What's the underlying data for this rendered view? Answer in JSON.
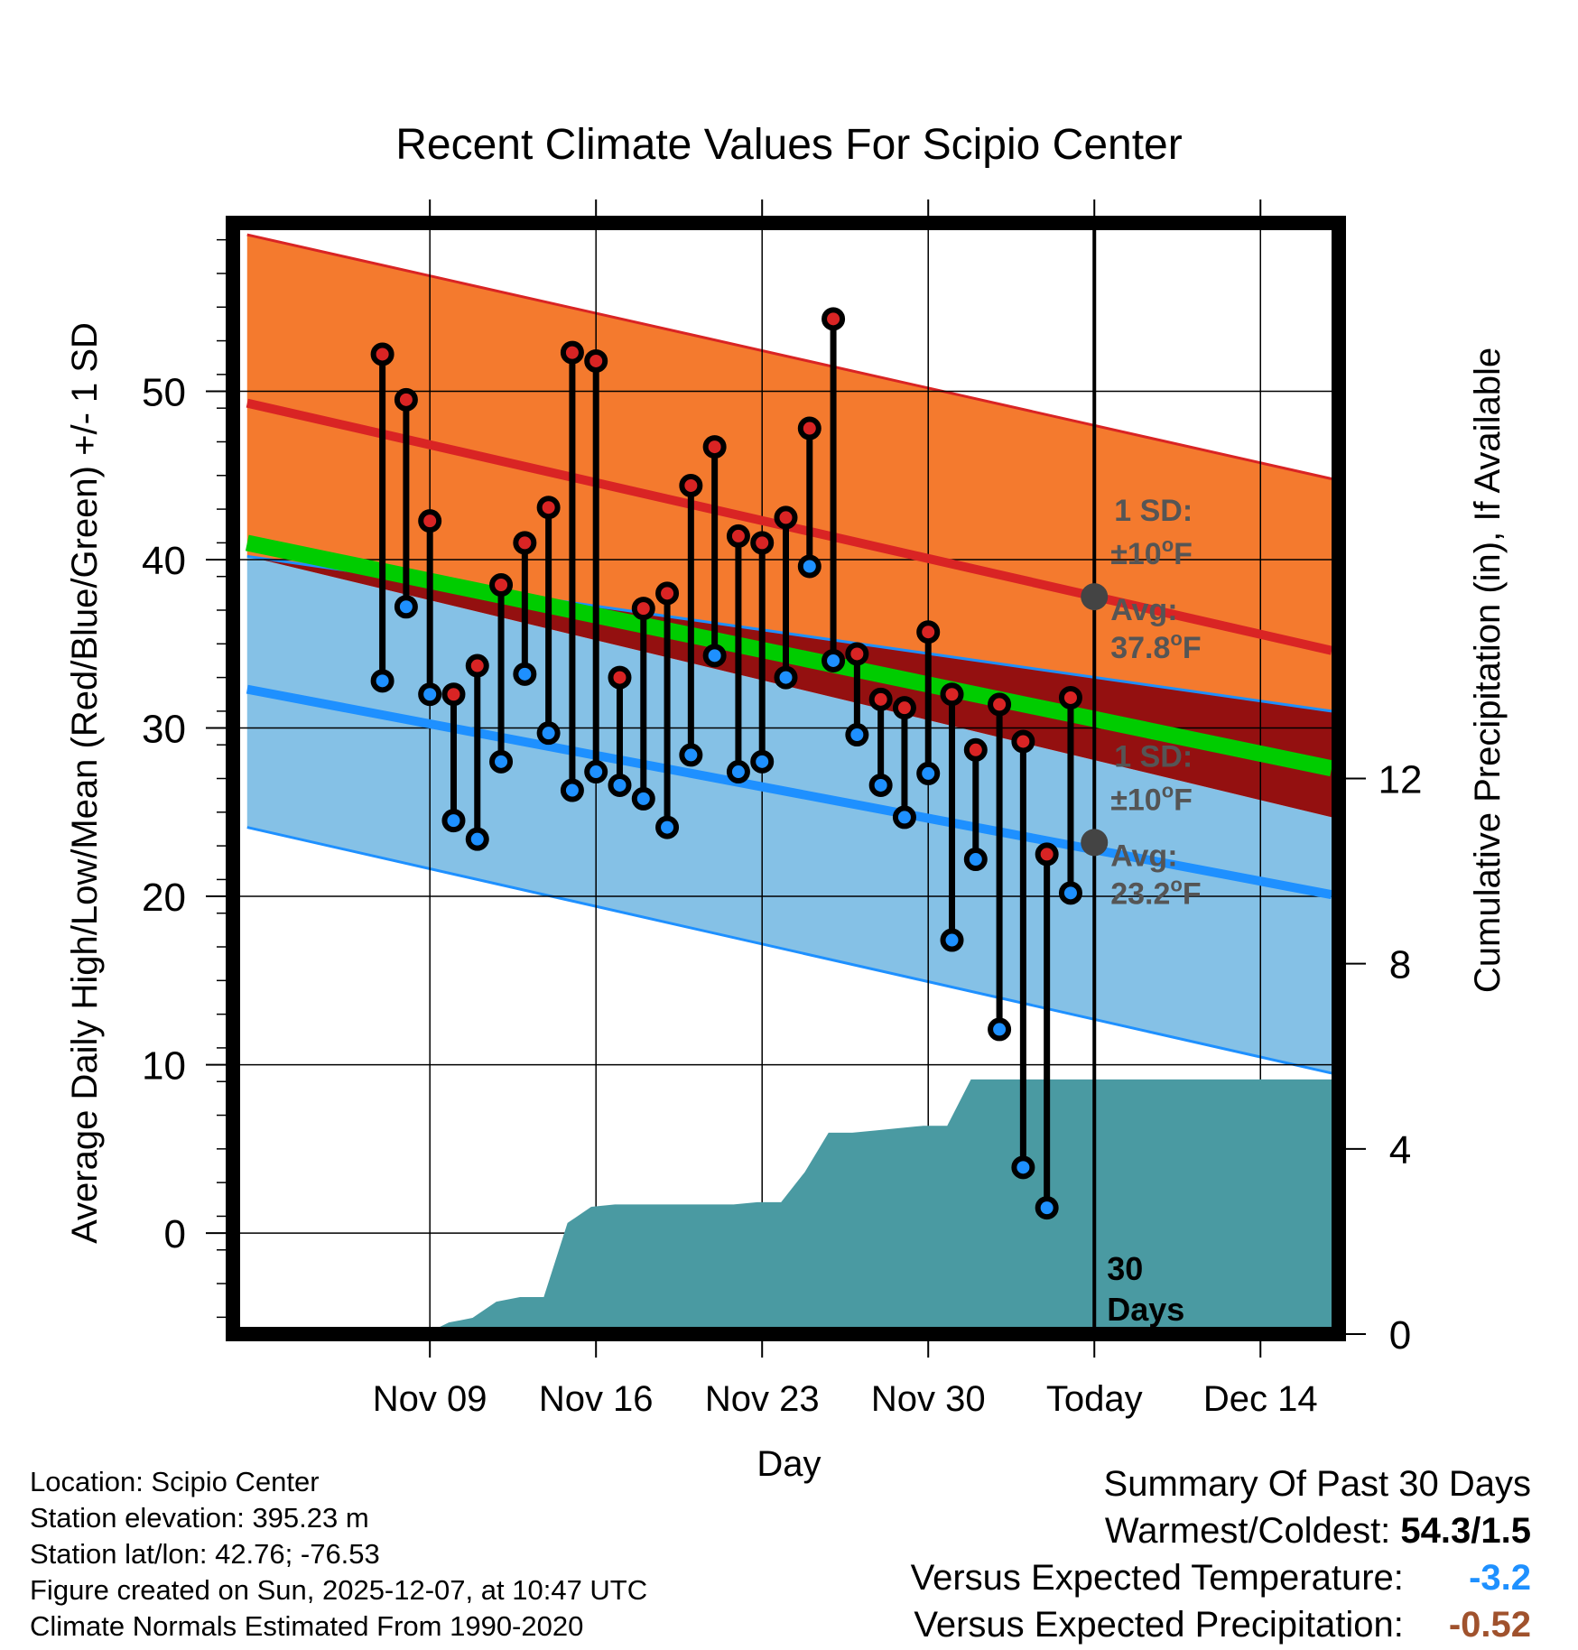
{
  "chart_data": {
    "type": "line",
    "title": "Recent Climate Values For Scipio Center",
    "xlabel": "Day",
    "ylabel": "Average Daily High/Low/Mean (Red/Blue/Green) +/- 1 SD",
    "y2label": "Cumulative Precipitation (in), If Available",
    "xlim_days": [
      -36.3,
      10.3
    ],
    "ylim": [
      -6,
      60
    ],
    "y2lim": [
      0,
      24
    ],
    "x_ticks": [
      {
        "day": -28,
        "label": "Nov 09"
      },
      {
        "day": -21,
        "label": "Nov 16"
      },
      {
        "day": -14,
        "label": "Nov 23"
      },
      {
        "day": -7,
        "label": "Nov 30"
      },
      {
        "day": 0,
        "label": "Today"
      },
      {
        "day": 7,
        "label": "Dec 14"
      }
    ],
    "y_ticks": [
      0,
      10,
      20,
      30,
      40,
      50
    ],
    "y2_ticks": [
      0,
      4,
      8,
      12
    ],
    "normals": {
      "x": [
        -35.7,
        10
      ],
      "high_avg": [
        49.3,
        34.6
      ],
      "high_sd_upper": [
        59.3,
        44.8
      ],
      "high_sd_lower": [
        40.2,
        31.0
      ],
      "low_avg": [
        32.3,
        20.1
      ],
      "low_sd_upper": [
        40.2,
        24.7
      ],
      "low_sd_lower": [
        24.1,
        9.5
      ],
      "mean_avg": [
        41.0,
        27.6
      ]
    },
    "today_high": {
      "value": 37.8,
      "sd_label": "1 SD:",
      "sd_value": "±10",
      "avg_label": "Avg:",
      "avg_value": "37.8",
      "unit": "F"
    },
    "today_low": {
      "value": 23.2,
      "sd_label": "1 SD:",
      "sd_value": "±10",
      "avg_label": "Avg:",
      "avg_value": "23.2",
      "unit": "F"
    },
    "window_label": [
      "30",
      "Days"
    ],
    "observations": [
      {
        "day": -30,
        "high": 52.2,
        "low": 32.8
      },
      {
        "day": -29,
        "high": 49.5,
        "low": 37.2
      },
      {
        "day": -28,
        "high": 42.3,
        "low": 32.0
      },
      {
        "day": -27,
        "high": 32.0,
        "low": 24.5
      },
      {
        "day": -26,
        "high": 33.7,
        "low": 23.4
      },
      {
        "day": -25,
        "high": 38.5,
        "low": 28.0
      },
      {
        "day": -24,
        "high": 41.0,
        "low": 33.2
      },
      {
        "day": -23,
        "high": 43.1,
        "low": 29.7
      },
      {
        "day": -22,
        "high": 52.3,
        "low": 26.3
      },
      {
        "day": -21,
        "high": 51.8,
        "low": 27.4
      },
      {
        "day": -20,
        "high": 33.0,
        "low": 26.6
      },
      {
        "day": -19,
        "high": 37.1,
        "low": 25.8
      },
      {
        "day": -18,
        "high": 38.0,
        "low": 24.1
      },
      {
        "day": -17,
        "high": 44.4,
        "low": 28.4
      },
      {
        "day": -16,
        "high": 46.7,
        "low": 34.3
      },
      {
        "day": -15,
        "high": 41.4,
        "low": 27.4
      },
      {
        "day": -14,
        "high": 41.0,
        "low": 28.0
      },
      {
        "day": -13,
        "high": 42.5,
        "low": 33.0
      },
      {
        "day": -12,
        "high": 47.8,
        "low": 39.6
      },
      {
        "day": -11,
        "high": 54.3,
        "low": 34.0
      },
      {
        "day": -10,
        "high": 34.4,
        "low": 29.6
      },
      {
        "day": -9,
        "high": 31.7,
        "low": 26.6
      },
      {
        "day": -8,
        "high": 31.2,
        "low": 24.7
      },
      {
        "day": -7,
        "high": 35.7,
        "low": 27.3
      },
      {
        "day": -6,
        "high": 32.0,
        "low": 17.4
      },
      {
        "day": -5,
        "high": 28.7,
        "low": 22.2
      },
      {
        "day": -4,
        "high": 31.4,
        "low": 12.1
      },
      {
        "day": -3,
        "high": 29.2,
        "low": 3.9
      },
      {
        "day": -2,
        "high": 22.5,
        "low": 1.5
      },
      {
        "day": -1,
        "high": 31.8,
        "low": 20.2
      }
    ],
    "precipitation_cumulative": {
      "x": [
        -35.7,
        -28.2,
        -27.2,
        -26.2,
        -25.2,
        -24.2,
        -23.2,
        -22.2,
        -21.2,
        -20.2,
        -19.2,
        -18.2,
        -17.2,
        -16.2,
        -15.2,
        -14.2,
        -13.2,
        -12.2,
        -11.2,
        -10.2,
        -9.2,
        -8.2,
        -7.2,
        -6.2,
        -5.2,
        -4.2,
        -3.2,
        -2.2,
        -1.2,
        0,
        10
      ],
      "y": [
        0,
        0,
        0.25,
        0.35,
        0.7,
        0.8,
        0.8,
        2.4,
        2.75,
        2.8,
        2.8,
        2.8,
        2.8,
        2.8,
        2.8,
        2.85,
        2.85,
        3.5,
        4.35,
        4.35,
        4.4,
        4.45,
        4.5,
        4.5,
        5.5,
        5.5,
        5.5,
        5.5,
        5.5,
        5.5,
        5.5
      ]
    },
    "colors": {
      "high_band": "#f47a2e",
      "high_line": "#d92424",
      "mean_line": "#00cc00",
      "overlap_band": "#941010",
      "low_band": "#85c1e6",
      "low_line": "#1e90ff",
      "precip": "#4a9aa2",
      "today_marker": "#444444",
      "label_gray": "#555555"
    }
  },
  "footer": {
    "location": "Location: Scipio Center",
    "elevation": "Station elevation: 395.23 m",
    "latlon": "Station lat/lon: 42.76; -76.53",
    "created": "Figure created on Sun, 2025-12-07, at 10:47 UTC",
    "normals": "Climate Normals Estimated From 1990-2020"
  },
  "summary": {
    "title": "Summary Of Past 30 Days",
    "warmest_label": "Warmest/Coldest:",
    "warmest_value": "54.3/1.5",
    "temp_label": "Versus Expected Temperature:",
    "temp_value": "-3.2",
    "temp_color": "#1e90ff",
    "precip_label": "Versus Expected Precipitation:",
    "precip_value": "-0.52",
    "precip_color": "#a0522d"
  }
}
